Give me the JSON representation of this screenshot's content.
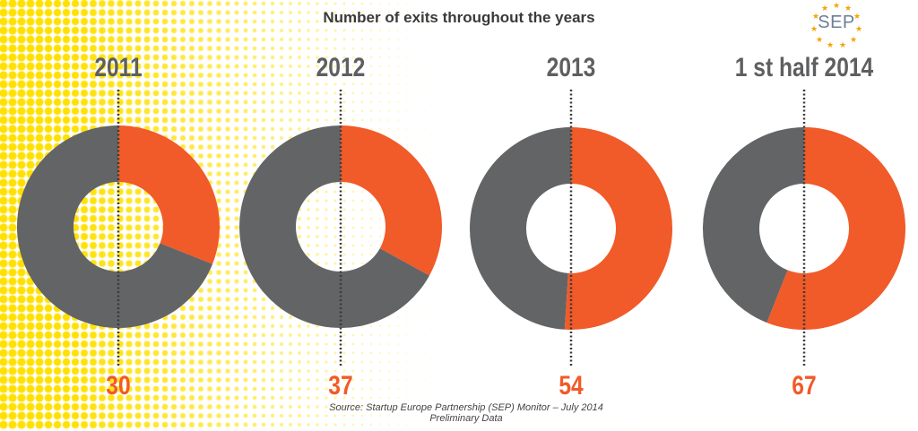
{
  "title": "Number of exits throughout the years",
  "source": {
    "line1": "Source: Startup Europe Partnership (SEP) Monitor – July 2014",
    "line2": "Preliminary Data"
  },
  "logo": {
    "text": "SEP"
  },
  "colors": {
    "highlight": "#f15a29",
    "rest": "#636466",
    "hole": "#ffffff",
    "dots": "#ffe000",
    "year_label": "#5e5f61"
  },
  "chart_data": {
    "type": "pie",
    "categories": [
      "2011",
      "2012",
      "2013",
      "1 st half 2014"
    ],
    "values": [
      30,
      37,
      54,
      67
    ],
    "value_labels": [
      "30",
      "37",
      "54",
      "67"
    ],
    "highlight_fraction": [
      0.31,
      0.33,
      0.51,
      0.56
    ],
    "xlabel": "",
    "ylabel": ""
  }
}
